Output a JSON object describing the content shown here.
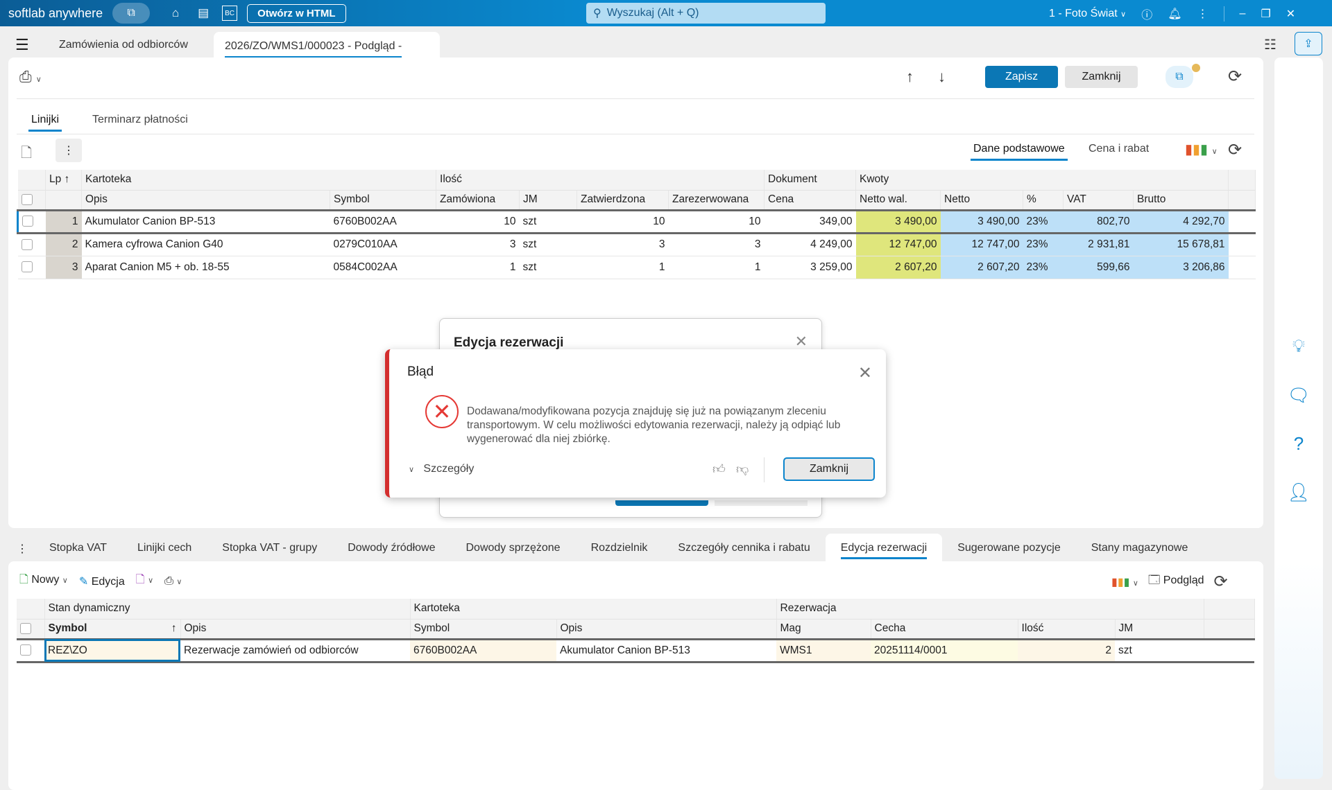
{
  "topbar": {
    "app_name": "softlab anywhere",
    "open_html": "Otwórz w HTML",
    "search_placeholder": "Wyszukaj (Alt + Q)",
    "company": "1 - Foto Świat"
  },
  "doc_tabs": [
    {
      "label": "Zamówienia od odbiorców"
    },
    {
      "label": "2026/ZO/WMS1/000023 - Podgląd - "
    }
  ],
  "toolbar": {
    "save": "Zapisz",
    "close": "Zamknij"
  },
  "section_tabs": [
    {
      "label": "Linijki",
      "active": true
    },
    {
      "label": "Terminarz płatności"
    }
  ],
  "view_tabs": [
    {
      "label": "Dane podstawowe",
      "active": true
    },
    {
      "label": "Cena i rabat"
    }
  ],
  "lines_table": {
    "group_headers": {
      "lp": "Lp",
      "kartoteka": "Kartoteka",
      "ilosc": "Ilość",
      "dokument": "Dokument",
      "kwoty": "Kwoty"
    },
    "columns": [
      "Opis",
      "Symbol",
      "Zamówiona",
      "JM",
      "Zatwierdzona",
      "Zarezerwowana",
      "Cena",
      "Netto wal.",
      "Netto",
      "%",
      "VAT",
      "Brutto"
    ],
    "rows": [
      {
        "lp": "1",
        "opis": "Akumulator Canion BP-513",
        "symbol": "6760B002AA",
        "zamowiona": "10",
        "jm": "szt",
        "zatwierdzona": "10",
        "zarezerwowana": "10",
        "cena": "349,00",
        "netto_wal": "3 490,00",
        "netto": "3 490,00",
        "proc": "23%",
        "vat": "802,70",
        "brutto": "4 292,70"
      },
      {
        "lp": "2",
        "opis": "Kamera cyfrowa Canion G40",
        "symbol": "0279C010AA",
        "zamowiona": "3",
        "jm": "szt",
        "zatwierdzona": "3",
        "zarezerwowana": "3",
        "cena": "4 249,00",
        "netto_wal": "12 747,00",
        "netto": "12 747,00",
        "proc": "23%",
        "vat": "2 931,81",
        "brutto": "15 678,81"
      },
      {
        "lp": "3",
        "opis": "Aparat Canion M5 + ob. 18-55",
        "symbol": "0584C002AA",
        "zamowiona": "1",
        "jm": "szt",
        "zatwierdzona": "1",
        "zarezerwowana": "1",
        "cena": "3 259,00",
        "netto_wal": "2 607,20",
        "netto": "2 607,20",
        "proc": "23%",
        "vat": "599,66",
        "brutto": "3 206,86"
      }
    ]
  },
  "back_dialog": {
    "title": "Edycja rezerwacji"
  },
  "error_dialog": {
    "title": "Błąd",
    "message": "Dodawana/modyfikowana pozycja znajduję się już na powiązanym zleceniu transportowym. W celu możliwości edytowania rezerwacji, należy ją odpiąć lub wygenerować dla niej zbiórkę.",
    "details": "Szczegóły",
    "close": "Zamknij",
    "accent": "#d32f2f"
  },
  "bottom_tabs": [
    {
      "label": "Stopka VAT"
    },
    {
      "label": "Linijki cech"
    },
    {
      "label": "Stopka VAT - grupy"
    },
    {
      "label": "Dowody źródłowe"
    },
    {
      "label": "Dowody sprzężone"
    },
    {
      "label": "Rozdzielnik"
    },
    {
      "label": "Szczegóły cennika i rabatu"
    },
    {
      "label": "Edycja rezerwacji",
      "active": true
    },
    {
      "label": "Sugerowane pozycje"
    },
    {
      "label": "Stany magazynowe"
    }
  ],
  "bottom_toolbar": {
    "new": "Nowy",
    "edit": "Edycja",
    "preview": "Podgląd"
  },
  "res_table": {
    "group_headers": {
      "stan": "Stan dynamiczny",
      "kartoteka": "Kartoteka",
      "rezerwacja": "Rezerwacja"
    },
    "columns": [
      "Symbol",
      "Opis",
      "Symbol",
      "Opis",
      "Mag",
      "Cecha",
      "Ilość",
      "JM"
    ],
    "rows": [
      {
        "symbol": "REZ\\ZO",
        "opis": "Rezerwacje zamówień od odbiorców",
        "k_symbol": "6760B002AA",
        "k_opis": "Akumulator Canion BP-513",
        "mag": "WMS1",
        "cecha": "20251114/0001",
        "ilosc": "2",
        "jm": "szt"
      }
    ]
  },
  "colors": {
    "primary": "#0b84cc",
    "netto_wal_highlight": "#dfe67c",
    "amount_highlight": "#bde0f8"
  }
}
